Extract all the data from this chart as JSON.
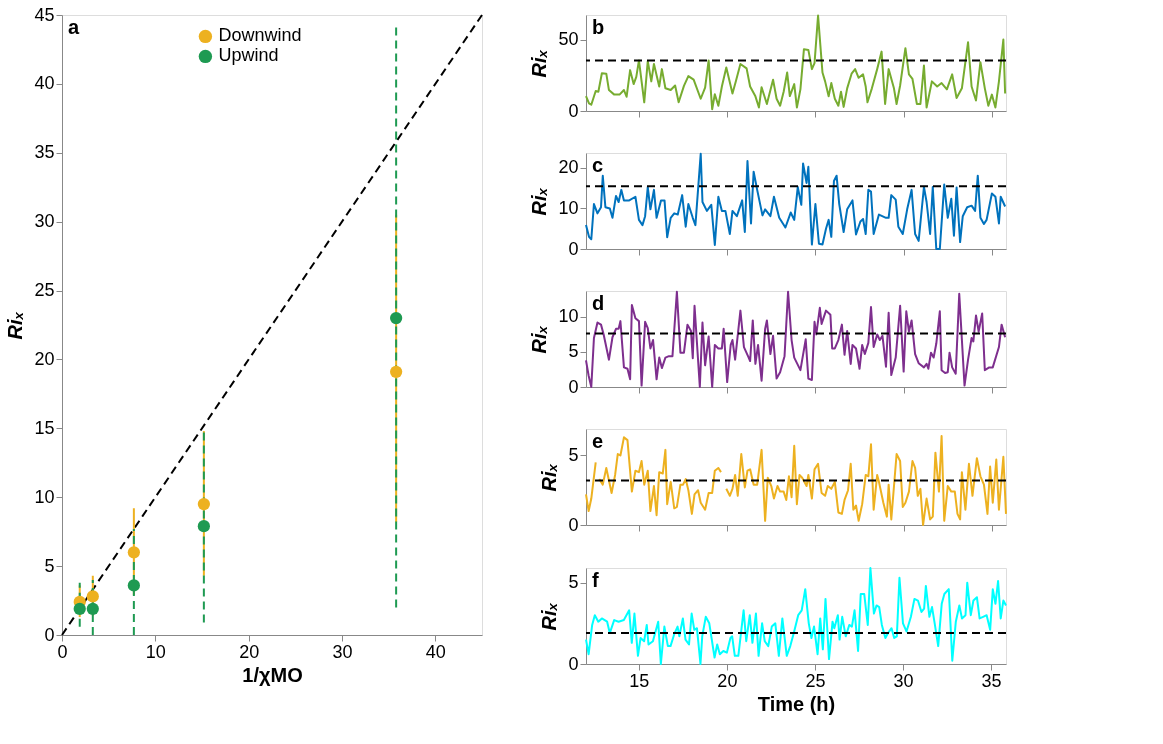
{
  "chart_data": [
    {
      "type": "scatter",
      "xlabel": "1/χMO",
      "ylabel": "Riₓ",
      "annotations": [
        "a"
      ],
      "xlim": [
        0,
        45
      ],
      "ylim": [
        0,
        45
      ],
      "xticks": [
        0,
        10,
        20,
        30,
        40
      ],
      "yticks": [
        0,
        5,
        10,
        15,
        20,
        25,
        30,
        35,
        40,
        45
      ],
      "grid": false,
      "legend": "top",
      "marker": "circle",
      "series": [
        {
          "name": "Downwind",
          "color": "#edb120",
          "x": [
            1.9,
            3.3,
            7.7,
            15.2,
            35.8
          ],
          "values": [
            2.4,
            2.8,
            6.0,
            9.5,
            19.1
          ],
          "errors": [
            [
              1.3,
              3.6
            ],
            [
              1.4,
              4.3
            ],
            [
              2.9,
              9.2
            ],
            [
              4.3,
              14.8
            ],
            [
              8.2,
              30.5
            ]
          ],
          "line_style": "solid"
        },
        {
          "name": "Upwind",
          "color": "#1e9a52",
          "x": [
            1.9,
            3.3,
            7.7,
            15.2,
            35.8
          ],
          "values": [
            1.9,
            1.9,
            3.6,
            7.9,
            23.0
          ],
          "errors": [
            [
              0.6,
              3.8
            ],
            [
              0,
              4
            ],
            [
              0,
              7.7
            ],
            [
              0.9,
              14.8
            ],
            [
              2.0,
              44.3
            ]
          ],
          "line_style": "dashed"
        },
        {
          "type": "line",
          "color": "#000000",
          "x": [
            0,
            45
          ],
          "values": [
            0,
            45
          ],
          "line_style": "dashed",
          "marker": "none"
        }
      ]
    },
    {
      "type": "line",
      "ylabel": "Riₓ",
      "annotations": [
        "b"
      ],
      "xlim": [
        12,
        35.8
      ],
      "ylim": [
        0,
        67.4
      ],
      "xticks": [
        15,
        20,
        25,
        30,
        35
      ],
      "yticks": [
        0,
        50
      ],
      "tick_labels": "y",
      "grid": false,
      "marker": "none",
      "x": [
        12,
        12.17,
        12.3,
        12.55,
        12.7,
        12.9,
        13.15,
        13.3,
        13.6,
        13.9,
        14.15,
        14.3,
        14.5,
        14.7,
        14.85,
        15.0,
        15.3,
        15.5,
        15.7,
        15.85,
        16.15,
        16.3,
        16.5,
        16.8,
        17.05,
        17.25,
        17.55,
        17.8,
        18.1,
        18.5,
        18.75,
        18.95,
        19.15,
        19.3,
        19.5,
        19.7,
        19.95,
        20.3,
        20.5,
        20.75,
        21.1,
        21.3,
        21.6,
        21.8,
        21.95,
        22.25,
        22.6,
        22.8,
        23,
        23.2,
        23.4,
        23.55,
        23.8,
        23.95,
        24.15,
        24.35,
        24.6,
        24.8,
        24.95,
        25.15,
        25.4,
        25.55,
        25.75,
        25.9,
        26.1,
        26.3,
        26.45,
        26.6,
        26.8,
        27.05,
        27.25,
        27.45,
        27.7,
        27.85,
        27.95,
        28.2,
        28.5,
        28.75,
        28.95,
        29.15,
        29.45,
        29.6,
        29.8,
        30.1,
        30.3,
        30.5,
        30.75,
        30.95,
        31.15,
        31.3,
        31.6,
        31.9,
        32.15,
        32.45,
        32.75,
        33,
        33.3,
        33.65,
        33.85,
        34.1,
        34.35,
        34.6,
        34.8,
        35,
        35.2,
        35.4,
        35.65,
        35.75
      ],
      "series": [
        {
          "color": "#77ac30",
          "values": [
            10.5,
            5.4,
            4.4,
            14,
            13.5,
            26.5,
            26.2,
            14.7,
            11.5,
            11.5,
            14.7,
            10,
            28.7,
            18.9,
            24,
            35.5,
            6.1,
            35,
            20.8,
            33,
            17.2,
            29.4,
            16,
            14.7,
            17.9,
            6.1,
            17.6,
            24.5,
            22,
            8.6,
            16.4,
            35.5,
            1.2,
            11.8,
            3.7,
            17.2,
            30.6,
            12.3,
            21.3,
            33,
            29.9,
            17.2,
            10.3,
            2.5,
            16.7,
            4.9,
            22,
            8.6,
            3.7,
            13.5,
            27,
            10.5,
            18.9,
            2.5,
            15.2,
            43.4,
            42.9,
            29.4,
            33.6,
            67,
            27,
            20.8,
            10.3,
            19.6,
            8.6,
            3.7,
            13.5,
            2.9,
            15.9,
            26.2,
            29.4,
            23.3,
            25.7,
            17.2,
            6.1,
            15.9,
            29.4,
            41.7,
            4.9,
            29.4,
            15.9,
            4.9,
            17.9,
            44.1,
            25.7,
            22.5,
            4.9,
            4.9,
            31.9,
            2.5,
            20.8,
            17.2,
            19.6,
            15.2,
            25.7,
            9.1,
            15.9,
            48.3,
            17.2,
            7.4,
            34.3,
            15.9,
            3.7,
            11.5,
            2.5,
            20.8,
            50.2,
            12.3
          ]
        }
      ],
      "ref_lines": [
        {
          "axis": "y",
          "value": 35.5,
          "color": "#000000",
          "line_style": "dashed"
        }
      ]
    },
    {
      "type": "line",
      "ylabel": "Riₓ",
      "annotations": [
        "c"
      ],
      "xlim": [
        12,
        35.8
      ],
      "ylim": [
        0,
        23.7
      ],
      "xticks": [
        15,
        20,
        25,
        30,
        35
      ],
      "yticks": [
        0,
        10,
        20
      ],
      "tick_labels": "y",
      "grid": false,
      "marker": "none",
      "x": [
        12,
        12.17,
        12.3,
        12.45,
        12.65,
        12.85,
        12.95,
        13.1,
        13.35,
        13.5,
        13.7,
        13.85,
        14,
        14.15,
        14.45,
        14.8,
        15,
        15.2,
        15.35,
        15.5,
        15.65,
        15.85,
        16,
        16.25,
        16.45,
        16.6,
        16.8,
        17,
        17.2,
        17.45,
        17.65,
        17.8,
        18.05,
        18.2,
        18.5,
        18.6,
        18.85,
        19.1,
        19.3,
        19.5,
        19.7,
        19.9,
        20.15,
        20.3,
        20.55,
        20.85,
        21,
        21.15,
        21.35,
        21.5,
        21.7,
        22,
        22.15,
        22.45,
        22.65,
        22.95,
        23.3,
        23.6,
        23.8,
        24,
        24.2,
        24.3,
        24.5,
        24.6,
        24.8,
        25,
        25.2,
        25.4,
        25.6,
        25.75,
        25.9,
        26.05,
        26.2,
        26.35,
        26.6,
        26.8,
        27.1,
        27.3,
        27.55,
        27.7,
        27.85,
        28,
        28.15,
        28.3,
        28.6,
        29,
        29.15,
        29.3,
        29.55,
        29.7,
        29.95,
        30.2,
        30.45,
        30.65,
        30.85,
        31.15,
        31.3,
        31.5,
        31.65,
        31.85,
        32.05,
        32.3,
        32.5,
        32.7,
        32.85,
        33,
        33.2,
        33.35,
        33.6,
        33.85,
        34.05,
        34.2,
        34.35,
        34.55,
        34.7,
        35,
        35.2,
        35.4,
        35.5,
        35.75
      ],
      "series": [
        {
          "color": "#0072bd",
          "values": [
            5.9,
            3,
            2.4,
            11.1,
            8.8,
            10.3,
            18.1,
            10.3,
            10,
            7.7,
            13.1,
            11.6,
            14.6,
            12,
            12,
            12.9,
            7.2,
            5.9,
            8.1,
            15.3,
            9.8,
            14.6,
            7.7,
            12,
            12,
            2.9,
            7.7,
            8.8,
            8.5,
            13.3,
            5.5,
            11.1,
            7.7,
            5.9,
            23.5,
            11.6,
            9.4,
            10.9,
            1,
            12.9,
            9.4,
            9.4,
            3.7,
            9.4,
            8.1,
            12,
            4.2,
            21.7,
            6.3,
            19.1,
            14.6,
            8.3,
            9.8,
            8.1,
            12.9,
            7.7,
            5.3,
            9,
            7.2,
            15.3,
            10.9,
            21.1,
            16.3,
            20.3,
            1.1,
            11.1,
            1.3,
            1.1,
            5,
            7.2,
            3,
            16.8,
            18.1,
            11.1,
            4.2,
            9.8,
            12,
            3.6,
            6.8,
            7.4,
            3.7,
            14.6,
            14.2,
            3.7,
            8.5,
            7.7,
            7.7,
            13.3,
            12.2,
            5.5,
            3.7,
            9.8,
            14.6,
            3.7,
            2,
            15.3,
            11.6,
            3.7,
            15.3,
            0,
            0,
            15.9,
            7.7,
            12.4,
            3.3,
            15.2,
            1.7,
            8.1,
            10.3,
            10.7,
            9.4,
            18.1,
            7.7,
            6.2,
            7.2,
            13.7,
            12.9,
            6.3,
            12.9,
            10.5
          ]
        }
      ],
      "ref_lines": [
        {
          "axis": "y",
          "value": 15.5,
          "color": "#000000",
          "line_style": "dashed"
        }
      ]
    },
    {
      "type": "line",
      "ylabel": "Riₓ",
      "annotations": [
        "d"
      ],
      "xlim": [
        12,
        35.8
      ],
      "ylim": [
        0,
        13.7
      ],
      "xticks": [
        15,
        20,
        25,
        30,
        35
      ],
      "yticks": [
        0,
        5,
        10
      ],
      "tick_labels": "y",
      "grid": false,
      "marker": "none",
      "x": [
        12,
        12.15,
        12.3,
        12.45,
        12.65,
        12.85,
        13,
        13.3,
        13.5,
        13.7,
        13.85,
        13.95,
        14.15,
        14.35,
        14.5,
        14.6,
        14.8,
        15,
        15.15,
        15.35,
        15.5,
        15.65,
        15.8,
        16,
        16.15,
        16.3,
        16.5,
        16.7,
        16.9,
        17.15,
        17.35,
        17.55,
        17.75,
        17.95,
        18.05,
        18.15,
        18.45,
        18.6,
        18.75,
        18.95,
        19.15,
        19.3,
        19.5,
        19.7,
        19.8,
        20,
        20.2,
        20.3,
        20.45,
        20.75,
        20.95,
        21.2,
        21.3,
        21.45,
        21.6,
        21.75,
        21.95,
        22.15,
        22.25,
        22.45,
        22.6,
        22.8,
        23,
        23.25,
        23.45,
        23.65,
        23.8,
        24.15,
        24.45,
        24.6,
        24.8,
        24.95,
        25.05,
        25.25,
        25.35,
        25.6,
        25.85,
        25.95,
        26.1,
        26.3,
        26.5,
        26.65,
        26.8,
        27,
        27.1,
        27.3,
        27.5,
        27.65,
        27.8,
        28,
        28.15,
        28.3,
        28.5,
        28.65,
        28.8,
        29,
        29.15,
        29.3,
        29.55,
        29.8,
        30,
        30.15,
        30.3,
        30.45,
        30.65,
        30.85,
        31.15,
        31.3,
        31.4,
        31.55,
        31.7,
        31.85,
        32.05,
        32.15,
        32.35,
        32.5,
        32.6,
        32.75,
        32.95,
        33.15,
        33.45,
        33.65,
        33.85,
        33.95,
        34.1,
        34.25,
        34.45,
        34.6,
        34.85,
        35.05,
        35.4,
        35.55,
        35.75
      ],
      "series": [
        {
          "color": "#7e2f8e",
          "values": [
            3.8,
            1.6,
            0,
            7,
            9.2,
            8.9,
            7.5,
            3.9,
            7.1,
            8.3,
            8.3,
            9.4,
            2.8,
            2.6,
            1.1,
            11.7,
            9.8,
            9.4,
            0.2,
            9.3,
            8.4,
            5.5,
            6.7,
            1.1,
            4.2,
            2.7,
            4.2,
            4.4,
            4.4,
            13.6,
            4.9,
            4.9,
            8.9,
            8,
            4.1,
            11.6,
            0,
            9.2,
            3.1,
            7.2,
            0,
            6,
            5.5,
            5.5,
            8.3,
            0.7,
            6,
            6.7,
            3.9,
            10.9,
            5.7,
            4.3,
            3.7,
            9.5,
            3.3,
            6,
            0.9,
            8.3,
            9.5,
            4.7,
            7.3,
            1.2,
            2.1,
            4.4,
            13.6,
            6.7,
            4.2,
            2.4,
            6.8,
            1.2,
            1,
            9.3,
            7.5,
            11.3,
            9,
            10.9,
            10.3,
            5.5,
            5.5,
            6.7,
            8.9,
            4.6,
            8,
            3.3,
            6,
            5.5,
            2.6,
            6,
            4.7,
            6.3,
            11.4,
            5.7,
            7.5,
            6.7,
            7.3,
            2.9,
            10.6,
            1.7,
            4.2,
            11.6,
            2.2,
            10.8,
            7.9,
            9.5,
            4.7,
            3.4,
            2.8,
            3.3,
            2.6,
            4.9,
            4.2,
            6.2,
            10.8,
            2.4,
            2,
            2.1,
            4.9,
            2.8,
            1.9,
            13.3,
            0.2,
            3.9,
            7,
            6.5,
            10.2,
            7.9,
            10.5,
            2.4,
            2.8,
            2.8,
            5.7,
            8.9,
            7.1
          ]
        }
      ],
      "ref_lines": [
        {
          "axis": "y",
          "value": 7.65,
          "color": "#000000",
          "line_style": "dashed"
        }
      ]
    },
    {
      "type": "line",
      "ylabel": "Riₓ",
      "annotations": [
        "e"
      ],
      "xlim": [
        12,
        35.8
      ],
      "ylim": [
        0,
        6.9
      ],
      "xticks": [
        15,
        20,
        25,
        30,
        35
      ],
      "yticks": [
        0,
        5
      ],
      "tick_labels": "y",
      "grid": false,
      "marker": "none",
      "x": [
        12,
        12.15,
        12.3,
        12.55,
        12.65,
        12.75,
        12.95,
        13.15,
        13.45,
        13.65,
        13.8,
        13.95,
        14.15,
        14.35,
        14.6,
        14.8,
        15,
        15.15,
        15.3,
        15.5,
        15.65,
        15.85,
        16,
        16.15,
        16.35,
        16.5,
        16.6,
        16.8,
        17,
        17.15,
        17.35,
        17.5,
        17.65,
        17.8,
        18,
        18.15,
        18.35,
        18.5,
        18.75,
        18.95,
        19.15,
        19.3,
        19.5,
        19.65,
        19.75,
        19.95,
        20.15,
        20.3,
        20.45,
        20.6,
        20.8,
        21,
        21.15,
        21.3,
        21.5,
        21.7,
        21.95,
        22.15,
        22.3,
        22.5,
        22.65,
        22.85,
        23,
        23.2,
        23.35,
        23.5,
        23.65,
        23.8,
        23.95,
        24.1,
        24.25,
        24.5,
        24.6,
        24.8,
        24.95,
        25.15,
        25.35,
        25.55,
        25.7,
        25.9,
        26.1,
        26.3,
        26.5,
        26.65,
        26.85,
        27,
        27.15,
        27.3,
        27.45,
        27.65,
        27.85,
        28,
        28.15,
        28.3,
        28.5,
        28.6,
        28.85,
        29.05,
        29.15,
        29.3,
        29.6,
        29.8,
        29.95,
        30.1,
        30.3,
        30.5,
        30.65,
        30.8,
        30.95,
        31.1,
        31.3,
        31.5,
        31.65,
        31.8,
        32,
        32.15,
        32.3,
        32.5,
        32.7,
        32.9,
        33.05,
        33.2,
        33.3,
        33.5,
        33.7,
        33.9,
        34.15,
        34.35,
        34.55,
        34.75,
        34.9,
        35.05,
        35.25,
        35.4,
        35.65,
        35.8
      ],
      "series": [
        {
          "color": "#edb120",
          "values": [
            2.2,
            1,
            1.9,
            4.5,
            null,
            3.3,
            2.9,
            4.1,
            2.3,
            3.6,
            5.1,
            5,
            6.3,
            6.1,
            2.4,
            3.9,
            3.8,
            4.6,
            2.9,
            3.9,
            1,
            2.8,
            0.7,
            3.8,
            3.7,
            5.4,
            1.5,
            3.1,
            1.2,
            1.3,
            2.9,
            2.9,
            3.3,
            2.5,
            0.8,
            2.2,
            2.5,
            1.6,
            1.1,
            2.3,
            2.3,
            3.9,
            4.1,
            3.8,
            null,
            2.6,
            2.1,
            2.6,
            3.6,
            2.1,
            5.1,
            2.7,
            3.9,
            4,
            2.9,
            2.9,
            5.4,
            0.3,
            3.4,
            2.8,
            1.9,
            2.8,
            2.4,
            2.4,
            1.8,
            3.5,
            2,
            5.7,
            1.5,
            3.6,
            3.4,
            2.8,
            3.6,
            1.9,
            4,
            4.4,
            2.3,
            2.1,
            2.8,
            2.6,
            3.1,
            0.9,
            0.8,
            1.8,
            2.5,
            4.4,
            1.1,
            1.4,
            0.3,
            1.5,
            3.6,
            3.5,
            5.8,
            1.1,
            3.6,
            3.1,
            1.6,
            0.6,
            2.9,
            0.4,
            5.1,
            4.6,
            1.3,
            1.6,
            2.4,
            4.6,
            4.1,
            2.1,
            2.6,
            0,
            1.9,
            0.4,
            0.6,
            5.2,
            2.4,
            6.4,
            0.3,
            2.8,
            2.4,
            2.4,
            0.8,
            0.4,
            3.8,
            1.1,
            4.4,
            2.1,
            4.8,
            3.5,
            2.9,
            0.8,
            4.2,
            1.6,
            4.7,
            1.1,
            4.9,
            0.8
          ]
        }
      ],
      "ref_lines": [
        {
          "axis": "y",
          "value": 3.2,
          "color": "#000000",
          "line_style": "dashed"
        }
      ]
    },
    {
      "type": "line",
      "xlabel": "Time (h)",
      "ylabel": "Riₓ",
      "annotations": [
        "f"
      ],
      "xlim": [
        12,
        35.85
      ],
      "ylim": [
        0,
        5.9
      ],
      "xticks": [
        15,
        20,
        25,
        30,
        35
      ],
      "yticks": [
        0,
        5
      ],
      "grid": false,
      "marker": "none",
      "x": [
        12,
        12.15,
        12.35,
        12.5,
        12.7,
        12.9,
        13.2,
        13.35,
        13.6,
        13.85,
        14.15,
        14.45,
        14.6,
        14.75,
        14.95,
        15.1,
        15.3,
        15.45,
        15.55,
        15.8,
        16.1,
        16.25,
        16.45,
        16.65,
        16.8,
        17,
        17.2,
        17.3,
        17.5,
        17.65,
        17.85,
        18,
        18.15,
        18.3,
        18.5,
        18.6,
        18.8,
        19,
        19.3,
        19.45,
        19.6,
        19.8,
        20,
        20.2,
        20.3,
        20.45,
        20.65,
        20.95,
        21.1,
        21.3,
        21.45,
        21.65,
        21.8,
        22,
        22.15,
        22.35,
        22.55,
        22.75,
        22.95,
        23.15,
        23.4,
        23.6,
        23.8,
        24.05,
        24.25,
        24.45,
        24.65,
        24.8,
        24.95,
        25.15,
        25.3,
        25.45,
        25.6,
        25.8,
        26,
        26.1,
        26.3,
        26.4,
        26.55,
        26.75,
        26.95,
        27.1,
        27.25,
        27.45,
        27.6,
        27.8,
        28,
        28.15,
        28.35,
        28.5,
        28.65,
        28.8,
        29,
        29.15,
        29.35,
        29.5,
        29.65,
        29.8,
        30,
        30.2,
        30.45,
        30.65,
        30.85,
        31.05,
        31.2,
        31.3,
        31.5,
        31.65,
        31.8,
        32,
        32.2,
        32.35,
        32.6,
        32.8,
        33,
        33.2,
        33.35,
        33.55,
        33.65,
        33.85,
        34,
        34.2,
        34.35,
        34.55,
        34.75,
        34.95,
        35.1,
        35.25,
        35.4,
        35.55,
        35.7,
        35.85
      ],
      "series": [
        {
          "color": "#00ffff",
          "values": [
            1.5,
            0.6,
            2.4,
            3,
            2.6,
            2.8,
            2.6,
            1.9,
            2.7,
            2.6,
            2.7,
            3.3,
            1.3,
            3.1,
            0.5,
            1.6,
            1.4,
            2.4,
            1.2,
            1.4,
            2.6,
            0,
            2.3,
            1.1,
            1.1,
            1.8,
            2.3,
            1.7,
            2.8,
            1.5,
            1.2,
            3.1,
            2.1,
            2.2,
            0,
            1.7,
            2.9,
            2.5,
            0.4,
            1.2,
            0.6,
            0.8,
            0.7,
            1.6,
            1.7,
            0.5,
            0.5,
            3.3,
            1.4,
            3,
            1.3,
            3.1,
            0.5,
            2.5,
            1.4,
            1.1,
            2.3,
            2.5,
            0.5,
            2.8,
            0.5,
            1.1,
            1.9,
            3,
            3.3,
            4.6,
            2.5,
            1.6,
            2.3,
            0.6,
            2.8,
            0.9,
            4,
            0.3,
            2.6,
            2.2,
            3,
            1.5,
            2.9,
            1.7,
            2.4,
            2.3,
            3.3,
            0.8,
            4.3,
            4.3,
            2.4,
            5.9,
            3.1,
            3.6,
            3.5,
            2.4,
            1.6,
            1.9,
            2.2,
            1.6,
            1.7,
            5.3,
            2.5,
            2,
            2.9,
            4,
            3.9,
            3.2,
            3.4,
            4.8,
            2.9,
            3.5,
            2.5,
            1.1,
            3.7,
            4.3,
            4.6,
            0.2,
            2.6,
            3.6,
            2.8,
            3,
            5,
            3,
            3.9,
            4.1,
            2.8,
            2.9,
            3,
            2.1,
            4.6,
            3.7,
            5.1,
            2.8,
            3.9,
            3.6
          ]
        }
      ],
      "ref_lines": [
        {
          "axis": "y",
          "value": 1.9,
          "color": "#000000",
          "line_style": "dashed"
        }
      ]
    }
  ]
}
